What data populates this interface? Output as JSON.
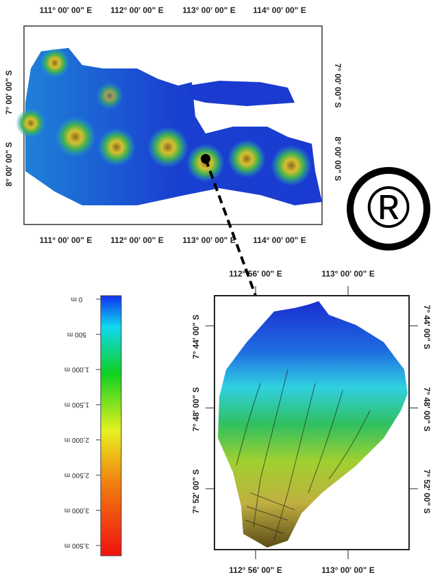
{
  "top_map": {
    "x_labels": [
      "111° 00' 00\" E",
      "112° 00' 00\" E",
      "113° 00' 00\" E",
      "114° 00' 00\" E"
    ],
    "y_labels": [
      "7° 00' 00\" S",
      "8° 00' 00\" S"
    ]
  },
  "detail_map": {
    "x_labels": [
      "112° 56' 00\" E",
      "113° 00' 00\" E"
    ],
    "y_labels": [
      "7° 44' 00\" S",
      "7° 48' 00\" S",
      "7° 52' 00\" S"
    ]
  },
  "colorbar": {
    "labels": [
      "0 m",
      "500 m",
      "1,000 m",
      "1,500 m",
      "2,000 m",
      "2,500 m",
      "3,000 m",
      "3,500 m"
    ]
  },
  "mark": "®"
}
